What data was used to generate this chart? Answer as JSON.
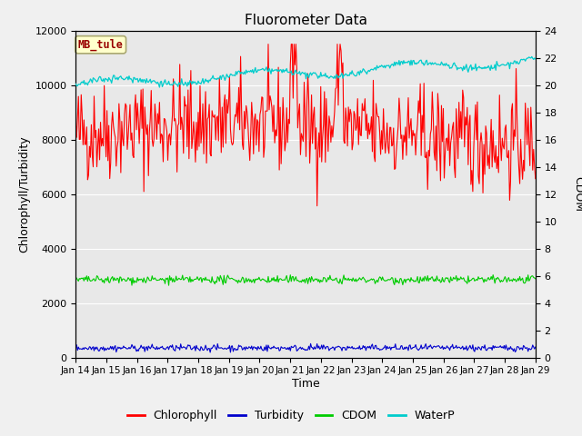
{
  "title": "Fluorometer Data",
  "xlabel": "Time",
  "ylabel_left": "Chlorophyll/Turbidity",
  "ylabel_right": "CDOM",
  "annotation": "MB_tule",
  "ylim_left": [
    0,
    12000
  ],
  "ylim_right": [
    0,
    24
  ],
  "yticks_left": [
    0,
    2000,
    4000,
    6000,
    8000,
    10000,
    12000
  ],
  "yticks_right": [
    0,
    2,
    4,
    6,
    8,
    10,
    12,
    14,
    16,
    18,
    20,
    22,
    24
  ],
  "xtick_labels": [
    "Jan 14",
    "Jan 15",
    "Jan 16",
    "Jan 17",
    "Jan 18",
    "Jan 19",
    "Jan 20",
    "Jan 21",
    "Jan 22",
    "Jan 23",
    "Jan 24",
    "Jan 25",
    "Jan 26",
    "Jan 27",
    "Jan 28",
    "Jan 29"
  ],
  "legend_labels": [
    "Chlorophyll",
    "Turbidity",
    "CDOM",
    "WaterP"
  ],
  "colors": {
    "Chlorophyll": "#ff0000",
    "Turbidity": "#0000cc",
    "CDOM": "#00cc00",
    "WaterP": "#00cccc",
    "figure_bg": "#f0f0f0",
    "plot_bg": "#e8e8e8",
    "grid": "#ffffff",
    "annotation_bg": "#ffffcc",
    "annotation_border": "#aaa870",
    "annotation_text": "#990000"
  },
  "n_points": 500,
  "seed": 42
}
